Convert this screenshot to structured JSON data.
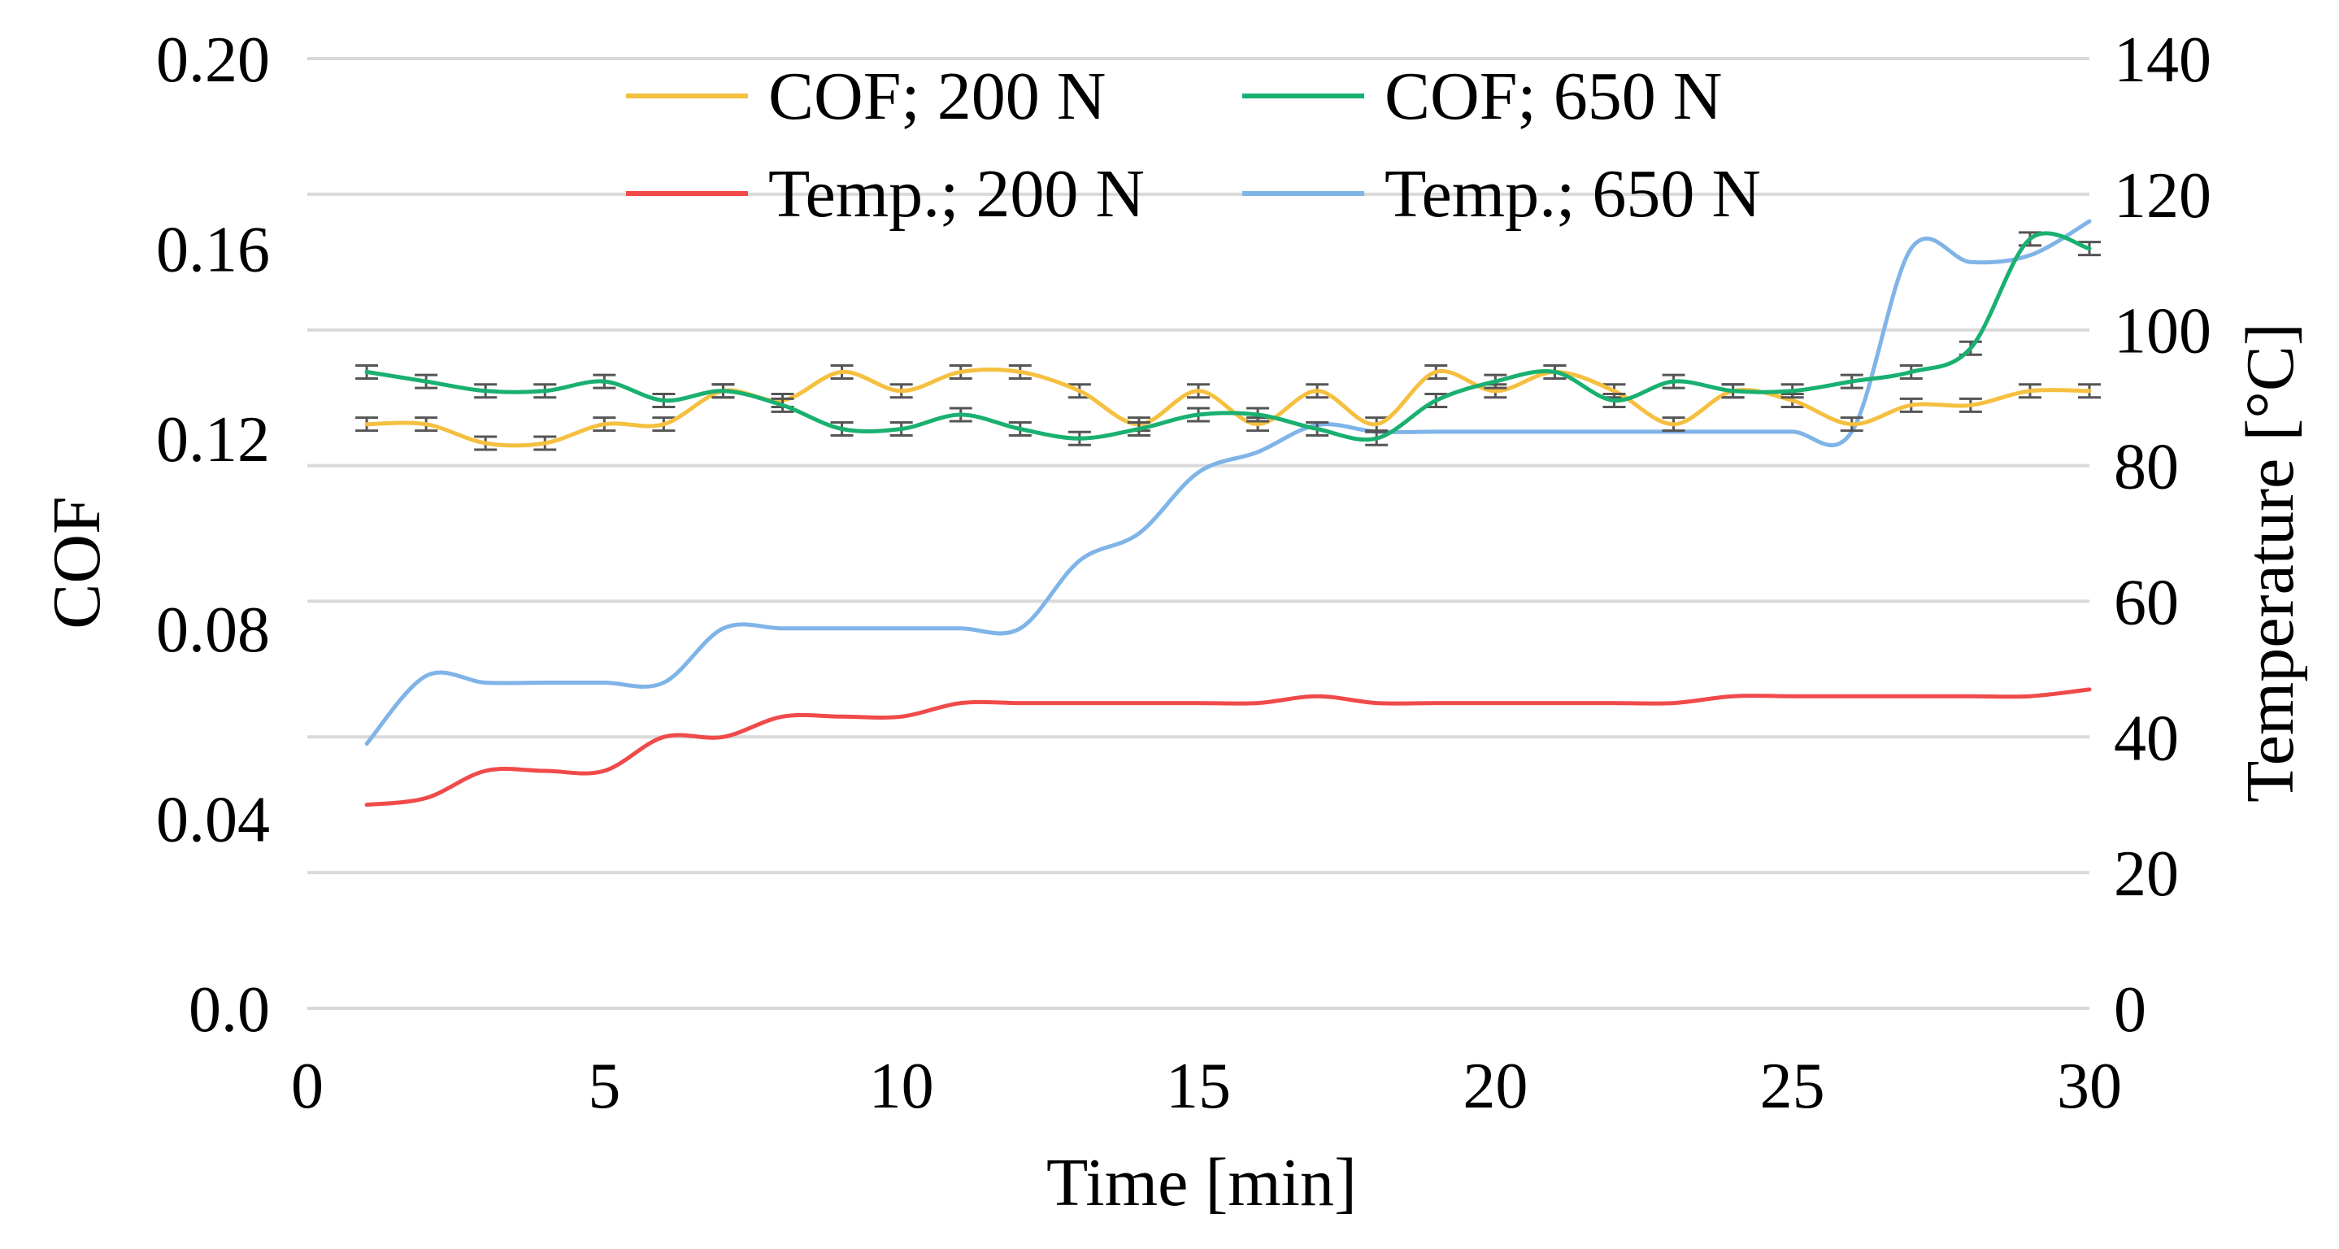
{
  "chart_data": {
    "type": "line",
    "title": "",
    "xlabel": "Time [min]",
    "ylabel": "COF",
    "y2label": "Temperature [°C]",
    "xlim": [
      0,
      30
    ],
    "ylim": [
      0.0,
      0.2
    ],
    "y2lim": [
      0,
      140
    ],
    "x_ticks": [
      "0",
      "5",
      "10",
      "15",
      "20",
      "25",
      "30"
    ],
    "y_ticks": [
      "0.0",
      "0.04",
      "0.08",
      "0.12",
      "0.16",
      "0.20"
    ],
    "y2_ticks": [
      "0",
      "20",
      "40",
      "60",
      "80",
      "100",
      "120",
      "140"
    ],
    "grid": true,
    "legend_position": "top",
    "x": [
      1,
      2,
      3,
      4,
      5,
      6,
      7,
      8,
      9,
      10,
      11,
      12,
      13,
      14,
      15,
      16,
      17,
      18,
      19,
      20,
      21,
      22,
      23,
      24,
      25,
      26,
      27,
      28,
      29,
      30
    ],
    "series": [
      {
        "name": "COF; 200 N",
        "axis": "left",
        "color": "#f5c040",
        "error_bars": true,
        "values": [
          0.123,
          0.123,
          0.119,
          0.119,
          0.123,
          0.123,
          0.13,
          0.128,
          0.134,
          0.13,
          0.134,
          0.134,
          0.13,
          0.123,
          0.13,
          0.123,
          0.13,
          0.123,
          0.134,
          0.13,
          0.134,
          0.13,
          0.123,
          0.13,
          0.128,
          0.123,
          0.127,
          0.127,
          0.13,
          0.13
        ]
      },
      {
        "name": "COF; 650 N",
        "axis": "left",
        "color": "#19b070",
        "error_bars": true,
        "values": [
          0.134,
          0.132,
          0.13,
          0.13,
          0.132,
          0.128,
          0.13,
          0.127,
          0.122,
          0.122,
          0.125,
          0.122,
          0.12,
          0.122,
          0.125,
          0.125,
          0.122,
          0.12,
          0.128,
          0.132,
          0.134,
          0.128,
          0.132,
          0.13,
          0.13,
          0.132,
          0.134,
          0.139,
          0.162,
          0.16
        ]
      },
      {
        "name": "Temp.; 200 N",
        "axis": "right",
        "color": "#f04a4a",
        "error_bars": false,
        "values": [
          30,
          31,
          35,
          35,
          35,
          40,
          40,
          43,
          43,
          43,
          45,
          45,
          45,
          45,
          45,
          45,
          46,
          45,
          45,
          45,
          45,
          45,
          45,
          46,
          46,
          46,
          46,
          46,
          46,
          47
        ]
      },
      {
        "name": "Temp.; 650 N",
        "axis": "right",
        "color": "#7fb4e8",
        "error_bars": false,
        "values": [
          39,
          49,
          48,
          48,
          48,
          48,
          56,
          56,
          56,
          56,
          56,
          56,
          66,
          70,
          79,
          82,
          86,
          85,
          85,
          85,
          85,
          85,
          85,
          85,
          85,
          85,
          112,
          110,
          111,
          116
        ]
      }
    ]
  }
}
